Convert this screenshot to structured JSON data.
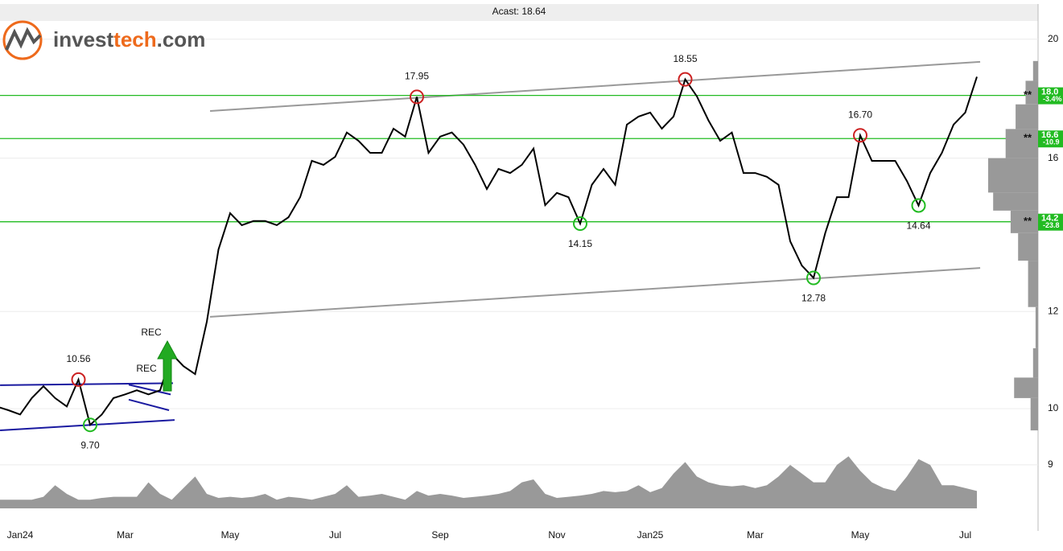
{
  "logo": {
    "parts": [
      "invest",
      "tech",
      ".com"
    ],
    "colors": [
      "#555555",
      "#ee6a1c",
      "#555555"
    ]
  },
  "chart_data": {
    "type": "line",
    "title": "Acast: 18.64",
    "log_scale": true,
    "grid": true,
    "ylim": [
      7.95,
      20.7
    ],
    "yticks": [
      9,
      10,
      12,
      16,
      20
    ],
    "categories": [
      null,
      null,
      "Jan24",
      null,
      null,
      null,
      null,
      null,
      null,
      null,
      null,
      "Mar",
      null,
      null,
      null,
      null,
      null,
      null,
      null,
      null,
      "May",
      null,
      null,
      null,
      null,
      null,
      null,
      null,
      null,
      "Jul",
      null,
      null,
      null,
      null,
      null,
      null,
      null,
      null,
      "Sep",
      null,
      null,
      null,
      null,
      null,
      null,
      null,
      null,
      null,
      "Nov",
      null,
      null,
      null,
      null,
      null,
      null,
      null,
      "Jan25",
      null,
      null,
      null,
      null,
      null,
      null,
      null,
      null,
      "Mar",
      null,
      null,
      null,
      null,
      null,
      null,
      null,
      null,
      "May",
      null,
      null,
      null,
      null,
      null,
      null,
      null,
      null,
      "Jul",
      null
    ],
    "series": [
      {
        "color": "#000000",
        "values": [
          10.04,
          9.97,
          9.89,
          10.2,
          10.43,
          10.2,
          10.04,
          10.56,
          9.7,
          9.89,
          10.2,
          10.27,
          10.35,
          10.27,
          10.35,
          11.08,
          10.83,
          10.67,
          11.77,
          13.48,
          14.43,
          14.11,
          14.22,
          14.22,
          14.11,
          14.32,
          14.87,
          15.92,
          15.8,
          16.04,
          16.79,
          16.53,
          16.16,
          16.16,
          16.91,
          16.66,
          17.95,
          16.16,
          16.66,
          16.79,
          16.41,
          15.8,
          15.1,
          15.68,
          15.56,
          15.8,
          16.29,
          14.65,
          14.99,
          14.87,
          14.15,
          15.22,
          15.68,
          15.22,
          17.04,
          17.3,
          17.43,
          16.91,
          17.3,
          18.55,
          17.97,
          17.17,
          16.53,
          16.79,
          15.56,
          15.56,
          15.45,
          15.22,
          13.69,
          13.08,
          12.78,
          13.9,
          14.87,
          14.87,
          16.7,
          15.92,
          15.92,
          15.92,
          15.33,
          14.64,
          15.56,
          16.16,
          17.04,
          17.43,
          18.64
        ],
        "value_labels": [
          null,
          null,
          null,
          null,
          null,
          null,
          null,
          "10.56",
          "9.70",
          null,
          null,
          null,
          null,
          null,
          null,
          null,
          null,
          null,
          null,
          null,
          null,
          null,
          null,
          null,
          null,
          null,
          null,
          null,
          null,
          null,
          null,
          null,
          null,
          null,
          null,
          null,
          "17.95",
          null,
          null,
          null,
          null,
          null,
          null,
          null,
          null,
          null,
          null,
          null,
          null,
          null,
          "14.15",
          null,
          null,
          null,
          null,
          null,
          null,
          null,
          null,
          "18.55",
          null,
          null,
          null,
          null,
          null,
          null,
          null,
          null,
          null,
          null,
          "12.78",
          null,
          null,
          null,
          "16.70",
          null,
          null,
          null,
          null,
          "14.64",
          null,
          null,
          null,
          null,
          null
        ]
      }
    ],
    "peak_color": "#cc2222",
    "trough_color": "#22bb22",
    "volume": {
      "color": "#999999",
      "vlim": [
        0,
        100
      ],
      "values": [
        15,
        15,
        15,
        15,
        20,
        40,
        25,
        15,
        15,
        18,
        20,
        20,
        20,
        45,
        25,
        15,
        35,
        55,
        25,
        18,
        20,
        18,
        20,
        25,
        15,
        20,
        18,
        15,
        20,
        25,
        40,
        20,
        22,
        25,
        20,
        15,
        30,
        22,
        25,
        22,
        18,
        20,
        22,
        25,
        30,
        45,
        50,
        25,
        18,
        20,
        22,
        25,
        30,
        28,
        30,
        40,
        28,
        35,
        60,
        80,
        55,
        45,
        40,
        38,
        40,
        35,
        40,
        55,
        75,
        60,
        45,
        45,
        75,
        90,
        65,
        45,
        35,
        30,
        55,
        85,
        75,
        40,
        40,
        35,
        30
      ]
    },
    "profile": {
      "color": "#999999",
      "edges": [
        19.2,
        18.5,
        17.7,
        16.9,
        16.0,
        15.0,
        14.5,
        13.9,
        13.2,
        12.1,
        11.2,
        10.6,
        10.2,
        9.6
      ],
      "widths": [
        10,
        25,
        45,
        65,
        100,
        90,
        55,
        40,
        20,
        5,
        10,
        48,
        15
      ]
    },
    "levels": [
      {
        "value": 18.0,
        "label": "18.0",
        "change": "-3.4%",
        "marker": "**"
      },
      {
        "value": 16.6,
        "label": "16.6",
        "change": "-10.9",
        "marker": "**"
      },
      {
        "value": 14.2,
        "label": "14.2",
        "change": "-23.8",
        "marker": "**"
      }
    ],
    "level_color": "#22bb22",
    "trend_lines": [
      {
        "color": "#999999",
        "from": [
          18.28,
          17.48
        ],
        "to": [
          84.28,
          19.17
        ]
      },
      {
        "color": "#999999",
        "from": [
          18.28,
          11.88
        ],
        "to": [
          84.28,
          13.02
        ]
      },
      {
        "color": "#1a1aa0",
        "from": [
          0.28,
          10.45
        ],
        "to": [
          15.1,
          10.49
        ]
      },
      {
        "color": "#1a1aa0",
        "from": [
          0.28,
          9.6
        ],
        "to": [
          15.24,
          9.79
        ]
      },
      {
        "color": "#1a1aa0",
        "from": [
          11.31,
          10.46
        ],
        "to": [
          14.9,
          10.27
        ]
      },
      {
        "color": "#1a1aa0",
        "from": [
          11.31,
          10.17
        ],
        "to": [
          14.76,
          9.97
        ]
      }
    ],
    "annotations": [
      "REC",
      "REC"
    ]
  }
}
